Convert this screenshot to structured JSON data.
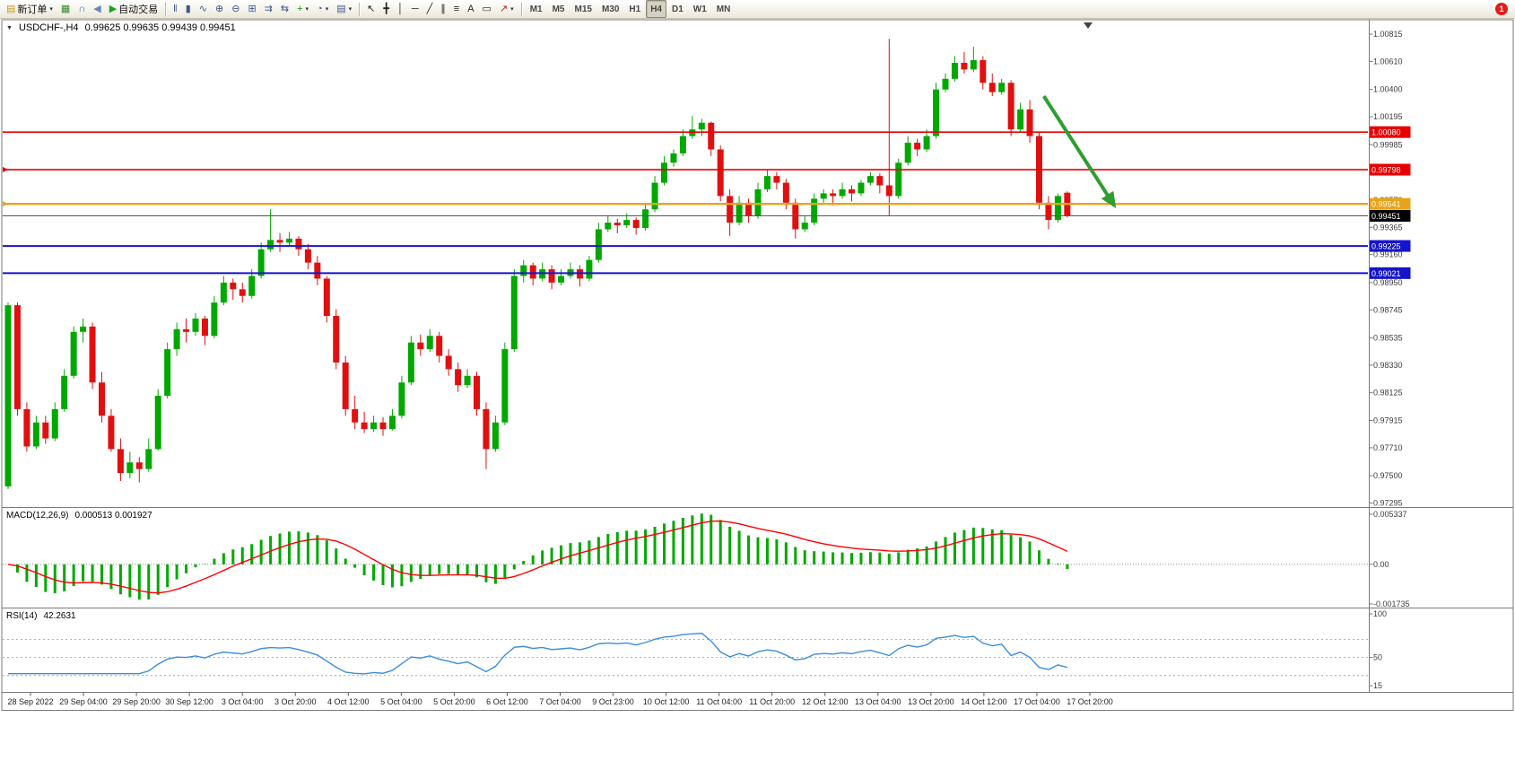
{
  "window": {
    "badge_count": "1"
  },
  "toolbar": {
    "items": [
      {
        "name": "new-order-button",
        "icon": "order-ticket-icon",
        "glyph": "▤",
        "color": "#c9971c",
        "label": "新订单",
        "caret": true
      },
      {
        "name": "new-chart-button",
        "icon": "chart-window-icon",
        "glyph": "▦",
        "color": "#2e8b2e"
      },
      {
        "name": "support-button",
        "icon": "headset-icon",
        "glyph": "∩",
        "color": "#2f5fbf"
      },
      {
        "name": "alerts-button",
        "icon": "speaker-icon",
        "glyph": "◀",
        "color": "#6a86b8"
      },
      {
        "name": "auto-trading-button",
        "icon": "play-icon",
        "glyph": "▶",
        "color": "#17a317",
        "label": "自动交易"
      },
      {
        "type": "sep"
      },
      {
        "name": "bar-chart-mode-button",
        "icon": "bars-icon",
        "glyph": "‖",
        "color": "#3a5a8a"
      },
      {
        "name": "candlestick-mode-button",
        "icon": "candlestick-icon",
        "glyph": "▮",
        "color": "#3a5a8a"
      },
      {
        "name": "line-chart-mode-button",
        "icon": "line-chart-icon",
        "glyph": "∿",
        "color": "#3a5a8a"
      },
      {
        "name": "zoom-in-button",
        "icon": "zoom-in-icon",
        "glyph": "⊕",
        "color": "#3a5a8a"
      },
      {
        "name": "zoom-out-button",
        "icon": "zoom-out-icon",
        "glyph": "⊖",
        "color": "#3a5a8a"
      },
      {
        "name": "tile-windows-button",
        "icon": "tile-windows-icon",
        "glyph": "⊞",
        "color": "#3a5a8a"
      },
      {
        "name": "auto-scroll-button",
        "icon": "auto-scroll-icon",
        "glyph": "⇉",
        "color": "#3a5a8a"
      },
      {
        "name": "chart-shift-button",
        "icon": "chart-shift-icon",
        "glyph": "⇆",
        "color": "#3a5a8a"
      },
      {
        "name": "indicators-button",
        "icon": "indicators-plus-icon",
        "glyph": "+",
        "color": "#0a9a0a",
        "caret": true
      },
      {
        "name": "periods-button",
        "icon": "clock-icon",
        "glyph": "◔",
        "color": "#3a5a8a",
        "caret": true
      },
      {
        "name": "templates-button",
        "icon": "template-icon",
        "glyph": "▤",
        "color": "#3a5a8a",
        "caret": true
      },
      {
        "type": "sep"
      },
      {
        "name": "cursor-button",
        "icon": "cursor-icon",
        "glyph": "↖",
        "color": "#222222"
      },
      {
        "name": "crosshair-button",
        "icon": "crosshair-icon",
        "glyph": "╋",
        "color": "#222222"
      },
      {
        "name": "vertical-line-button",
        "icon": "vertical-line-icon",
        "glyph": "│",
        "color": "#222222"
      },
      {
        "name": "horizontal-line-button",
        "icon": "horizontal-line-icon",
        "glyph": "─",
        "color": "#222222"
      },
      {
        "name": "trendline-button",
        "icon": "trendline-icon",
        "glyph": "╱",
        "color": "#222222"
      },
      {
        "name": "channel-button",
        "icon": "channel-icon",
        "glyph": "∥",
        "color": "#222222"
      },
      {
        "name": "fibonacci-button",
        "icon": "fibonacci-icon",
        "glyph": "≡",
        "color": "#222222"
      },
      {
        "name": "text-button",
        "icon": "text-icon",
        "glyph": "A",
        "color": "#222222"
      },
      {
        "name": "text-label-button",
        "icon": "text-label-icon",
        "glyph": "▭",
        "color": "#222222"
      },
      {
        "name": "arrows-button",
        "icon": "arrow-object-icon",
        "glyph": "↗",
        "color": "#b22222",
        "caret": true
      },
      {
        "type": "sep"
      }
    ],
    "timeframes": [
      "M1",
      "M5",
      "M15",
      "M30",
      "H1",
      "H4",
      "D1",
      "W1",
      "MN"
    ],
    "active_timeframe": "H4"
  },
  "chart": {
    "title_symbol": "USDCHF-,H4",
    "title_ohlc": "0.99625 0.99635 0.99439 0.99451"
  },
  "chart_data": {
    "type": "candlestick",
    "symbol": "USDCHF-",
    "timeframe": "H4",
    "colors": {
      "up": "#00a800",
      "down": "#e01010",
      "macd_hist": "#00a800",
      "macd_signal": "#ff0000",
      "rsi_line": "#3c8ddc",
      "arrow": "#2f9e2f"
    },
    "price_axis_labels": [
      "1.00815",
      "1.00610",
      "1.00400",
      "1.00195",
      "0.99985",
      "0.99775",
      "0.99570",
      "0.99365",
      "0.99160",
      "0.98950",
      "0.98745",
      "0.98535",
      "0.98330",
      "0.98125",
      "0.97915",
      "0.97710",
      "0.97500",
      "0.97295"
    ],
    "hlines": [
      {
        "price": 1.0008,
        "label": "1.00080",
        "color": "#e80000",
        "width": 1.6,
        "anchor": false
      },
      {
        "price": 0.99798,
        "label": "0.99798",
        "color": "#e80000",
        "width": 1.6,
        "anchor": true
      },
      {
        "price": 0.99541,
        "label": "0.99541",
        "color": "#e8a418",
        "width": 2.4,
        "anchor": true
      },
      {
        "price": 0.99225,
        "label": "0.99225",
        "color": "#1414cc",
        "width": 2,
        "anchor": false
      },
      {
        "price": 0.99021,
        "label": "0.99021",
        "color": "#1414cc",
        "width": 2,
        "anchor": false
      }
    ],
    "bid": {
      "price": 0.99451,
      "label": "0.99451",
      "box_color": "#000000",
      "line_color": "#555555"
    },
    "annotations": [
      {
        "type": "arrow",
        "from": {
          "index": 110.5,
          "price": 1.0035
        },
        "to": {
          "index": 118,
          "price": 0.9953
        },
        "color": "#2f9e2f",
        "width": 4
      }
    ],
    "time_labels": [
      "28 Sep 2022",
      "29 Sep 04:00",
      "29 Sep 20:00",
      "30 Sep 12:00",
      "3 Oct 04:00",
      "3 Oct 20:00",
      "4 Oct 12:00",
      "5 Oct 04:00",
      "5 Oct 20:00",
      "6 Oct 12:00",
      "7 Oct 04:00",
      "9 Oct 23:00",
      "10 Oct 12:00",
      "11 Oct 04:00",
      "11 Oct 20:00",
      "12 Oct 12:00",
      "13 Oct 04:00",
      "13 Oct 20:00",
      "14 Oct 12:00",
      "17 Oct 04:00",
      "17 Oct 20:00"
    ],
    "candles": [
      [
        0.9742,
        0.988,
        0.974,
        0.9878
      ],
      [
        0.9878,
        0.988,
        0.9795,
        0.98
      ],
      [
        0.98,
        0.9805,
        0.9768,
        0.9772
      ],
      [
        0.9772,
        0.9795,
        0.977,
        0.979
      ],
      [
        0.979,
        0.9795,
        0.9774,
        0.9778
      ],
      [
        0.9778,
        0.9805,
        0.9776,
        0.98
      ],
      [
        0.98,
        0.983,
        0.9798,
        0.9825
      ],
      [
        0.9825,
        0.9862,
        0.9823,
        0.9858
      ],
      [
        0.9858,
        0.9868,
        0.985,
        0.9862
      ],
      [
        0.9862,
        0.9865,
        0.9815,
        0.982
      ],
      [
        0.982,
        0.9828,
        0.979,
        0.9795
      ],
      [
        0.9795,
        0.98,
        0.9768,
        0.977
      ],
      [
        0.977,
        0.9778,
        0.9746,
        0.9752
      ],
      [
        0.9752,
        0.9768,
        0.9748,
        0.976
      ],
      [
        0.976,
        0.9764,
        0.9745,
        0.9755
      ],
      [
        0.9755,
        0.9778,
        0.9753,
        0.977
      ],
      [
        0.977,
        0.9815,
        0.9769,
        0.981
      ],
      [
        0.981,
        0.985,
        0.9808,
        0.9845
      ],
      [
        0.9845,
        0.9865,
        0.984,
        0.986
      ],
      [
        0.986,
        0.9868,
        0.985,
        0.9858
      ],
      [
        0.9858,
        0.9872,
        0.9855,
        0.9868
      ],
      [
        0.9868,
        0.987,
        0.9848,
        0.9855
      ],
      [
        0.9855,
        0.9885,
        0.9853,
        0.988
      ],
      [
        0.988,
        0.99,
        0.9878,
        0.9895
      ],
      [
        0.9895,
        0.9898,
        0.9882,
        0.989
      ],
      [
        0.989,
        0.9895,
        0.988,
        0.9885
      ],
      [
        0.9885,
        0.9905,
        0.9883,
        0.99
      ],
      [
        0.99,
        0.9925,
        0.9898,
        0.992
      ],
      [
        0.992,
        0.995,
        0.9918,
        0.9927
      ],
      [
        0.9927,
        0.9932,
        0.9918,
        0.9925
      ],
      [
        0.9925,
        0.9933,
        0.9922,
        0.9928
      ],
      [
        0.9928,
        0.993,
        0.9915,
        0.992
      ],
      [
        0.992,
        0.9924,
        0.9905,
        0.991
      ],
      [
        0.991,
        0.9915,
        0.9893,
        0.9898
      ],
      [
        0.9898,
        0.99,
        0.9865,
        0.987
      ],
      [
        0.987,
        0.9875,
        0.983,
        0.9835
      ],
      [
        0.9835,
        0.984,
        0.9795,
        0.98
      ],
      [
        0.98,
        0.981,
        0.9785,
        0.979
      ],
      [
        0.979,
        0.9798,
        0.9782,
        0.9785
      ],
      [
        0.9785,
        0.9795,
        0.9783,
        0.979
      ],
      [
        0.979,
        0.9794,
        0.978,
        0.9785
      ],
      [
        0.9785,
        0.98,
        0.9784,
        0.9795
      ],
      [
        0.9795,
        0.9825,
        0.9793,
        0.982
      ],
      [
        0.982,
        0.9855,
        0.9818,
        0.985
      ],
      [
        0.985,
        0.9856,
        0.984,
        0.9845
      ],
      [
        0.9845,
        0.986,
        0.9843,
        0.9855
      ],
      [
        0.9855,
        0.9858,
        0.9835,
        0.984
      ],
      [
        0.984,
        0.9845,
        0.9825,
        0.983
      ],
      [
        0.983,
        0.9835,
        0.9813,
        0.9818
      ],
      [
        0.9818,
        0.983,
        0.9816,
        0.9825
      ],
      [
        0.9825,
        0.9828,
        0.9795,
        0.98
      ],
      [
        0.98,
        0.9805,
        0.9755,
        0.977
      ],
      [
        0.977,
        0.9795,
        0.9768,
        0.979
      ],
      [
        0.979,
        0.985,
        0.9788,
        0.9845
      ],
      [
        0.9845,
        0.9905,
        0.9843,
        0.99
      ],
      [
        0.99,
        0.9912,
        0.9895,
        0.9908
      ],
      [
        0.9908,
        0.991,
        0.9893,
        0.9898
      ],
      [
        0.9898,
        0.991,
        0.9896,
        0.9905
      ],
      [
        0.9905,
        0.9908,
        0.989,
        0.9895
      ],
      [
        0.9895,
        0.9905,
        0.9893,
        0.99
      ],
      [
        0.99,
        0.991,
        0.9898,
        0.9905
      ],
      [
        0.9905,
        0.9908,
        0.9892,
        0.9898
      ],
      [
        0.9898,
        0.9915,
        0.9896,
        0.9912
      ],
      [
        0.9912,
        0.994,
        0.991,
        0.9935
      ],
      [
        0.9935,
        0.9945,
        0.9933,
        0.994
      ],
      [
        0.994,
        0.9943,
        0.9932,
        0.9938
      ],
      [
        0.9938,
        0.9947,
        0.9936,
        0.9942
      ],
      [
        0.9942,
        0.9944,
        0.9931,
        0.9936
      ],
      [
        0.9936,
        0.9955,
        0.9934,
        0.995
      ],
      [
        0.995,
        0.9975,
        0.9948,
        0.997
      ],
      [
        0.997,
        0.999,
        0.9968,
        0.9985
      ],
      [
        0.9985,
        0.9995,
        0.9982,
        0.9992
      ],
      [
        0.9992,
        1.001,
        0.999,
        1.0005
      ],
      [
        1.0005,
        1.002,
        1.0003,
        1.001
      ],
      [
        1.001,
        1.0018,
        1.0005,
        1.0015
      ],
      [
        1.0015,
        1.0016,
        0.999,
        0.9995
      ],
      [
        0.9995,
        0.9998,
        0.9956,
        0.996
      ],
      [
        0.996,
        0.9965,
        0.993,
        0.994
      ],
      [
        0.994,
        0.996,
        0.9938,
        0.9955
      ],
      [
        0.9955,
        0.9958,
        0.994,
        0.9945
      ],
      [
        0.9945,
        0.997,
        0.9943,
        0.9965
      ],
      [
        0.9965,
        0.998,
        0.9963,
        0.9975
      ],
      [
        0.9975,
        0.9978,
        0.9965,
        0.997
      ],
      [
        0.997,
        0.9973,
        0.995,
        0.9955
      ],
      [
        0.9955,
        0.9958,
        0.9928,
        0.9935
      ],
      [
        0.9935,
        0.9945,
        0.9933,
        0.994
      ],
      [
        0.994,
        0.9962,
        0.9938,
        0.9958
      ],
      [
        0.9958,
        0.9965,
        0.9955,
        0.9962
      ],
      [
        0.9962,
        0.9965,
        0.9953,
        0.996
      ],
      [
        0.996,
        0.997,
        0.9958,
        0.9965
      ],
      [
        0.9965,
        0.9968,
        0.9956,
        0.9962
      ],
      [
        0.9962,
        0.9972,
        0.996,
        0.997
      ],
      [
        0.997,
        0.9978,
        0.9968,
        0.9975
      ],
      [
        0.9975,
        0.9977,
        0.9962,
        0.9968
      ],
      [
        0.9968,
        1.0078,
        0.9945,
        0.996
      ],
      [
        0.996,
        0.9988,
        0.9958,
        0.9985
      ],
      [
        0.9985,
        1.0005,
        0.9983,
        1.0
      ],
      [
        1.0,
        1.0003,
        0.999,
        0.9995
      ],
      [
        0.9995,
        1.001,
        0.9993,
        1.0005
      ],
      [
        1.0005,
        1.0045,
        1.0003,
        1.004
      ],
      [
        1.004,
        1.0052,
        1.0038,
        1.0048
      ],
      [
        1.0048,
        1.0065,
        1.0046,
        1.006
      ],
      [
        1.006,
        1.0068,
        1.0052,
        1.0055
      ],
      [
        1.0055,
        1.0072,
        1.0053,
        1.0062
      ],
      [
        1.0062,
        1.0065,
        1.004,
        1.0045
      ],
      [
        1.0045,
        1.0052,
        1.0035,
        1.0038
      ],
      [
        1.0038,
        1.0048,
        1.0036,
        1.0045
      ],
      [
        1.0045,
        1.0047,
        1.0005,
        1.001
      ],
      [
        1.001,
        1.003,
        1.0008,
        1.0025
      ],
      [
        1.0025,
        1.0032,
        1.0,
        1.0005
      ],
      [
        1.0005,
        1.0008,
        0.995,
        0.9955
      ],
      [
        0.9955,
        0.996,
        0.9935,
        0.9942
      ],
      [
        0.9942,
        0.9962,
        0.994,
        0.996
      ],
      [
        0.99625,
        0.99635,
        0.99439,
        0.99451
      ]
    ],
    "indicators": {
      "macd": {
        "label": "MACD(12,26,9)",
        "values_text": "0.000513 0.001927",
        "fast": 12,
        "slow": 26,
        "signal": 9,
        "axis_labels": {
          "max": "0.005337",
          "zero": "0.00",
          "min": "-0.001735"
        }
      },
      "rsi": {
        "label": "RSI(14)",
        "value_text": "42.2631",
        "period": 14,
        "axis_labels": [
          "100",
          "50",
          "15"
        ],
        "levels": [
          70,
          50,
          30
        ]
      }
    }
  }
}
